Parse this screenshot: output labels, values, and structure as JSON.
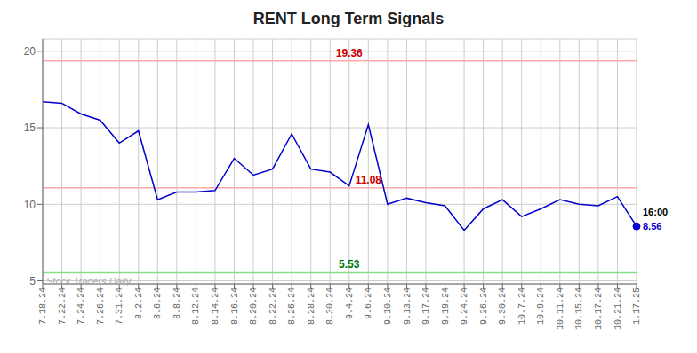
{
  "chart_data": {
    "type": "line",
    "title": "RENT Long Term Signals",
    "categories": [
      "7.18.24",
      "7.22.24",
      "7.24.24",
      "7.26.24",
      "7.31.24",
      "8.2.24",
      "8.6.24",
      "8.8.24",
      "8.12.24",
      "8.14.24",
      "8.16.24",
      "8.20.24",
      "8.22.24",
      "8.26.24",
      "8.28.24",
      "8.30.24",
      "9.4.24",
      "9.6.24",
      "9.10.24",
      "9.13.24",
      "9.17.24",
      "9.19.24",
      "9.24.24",
      "9.26.24",
      "9.30.24",
      "10.7.24",
      "10.9.24",
      "10.11.24",
      "10.15.24",
      "10.17.24",
      "10.21.24",
      "1.17.25"
    ],
    "values": [
      16.7,
      16.6,
      15.9,
      15.5,
      14.0,
      14.8,
      10.3,
      10.8,
      10.8,
      10.9,
      13.0,
      11.9,
      12.3,
      14.6,
      12.3,
      12.1,
      11.2,
      15.2,
      10.0,
      10.4,
      10.1,
      9.9,
      8.3,
      9.7,
      10.3,
      9.2,
      9.7,
      10.3,
      10.0,
      9.9,
      10.5,
      8.56
    ],
    "color": "#0000cc",
    "ylim": [
      4.8,
      20.8
    ],
    "yticks": [
      5,
      10,
      15,
      20
    ],
    "grid": true,
    "reference_lines": [
      {
        "value": 19.36,
        "label": "19.36",
        "color": "#ffaaaa",
        "label_color": "#cc0000",
        "label_at": "9.4.24"
      },
      {
        "value": 11.08,
        "label": "11.08",
        "color": "#ffaaaa",
        "label_color": "#cc0000",
        "label_at": "9.6.24"
      },
      {
        "value": 5.53,
        "label": "5.53",
        "color": "#88dd88",
        "label_color": "#007700",
        "label_at": "9.4.24"
      }
    ],
    "annotations": [
      {
        "text": "16:00",
        "x": "1.17.25",
        "y": 8.56,
        "color": "#000000"
      },
      {
        "text": "8.56",
        "x": "1.17.25",
        "y": 8.56,
        "color": "#0000cc"
      },
      {
        "text": "Stock Traders Daily",
        "color": "#aaaaaa"
      }
    ]
  }
}
